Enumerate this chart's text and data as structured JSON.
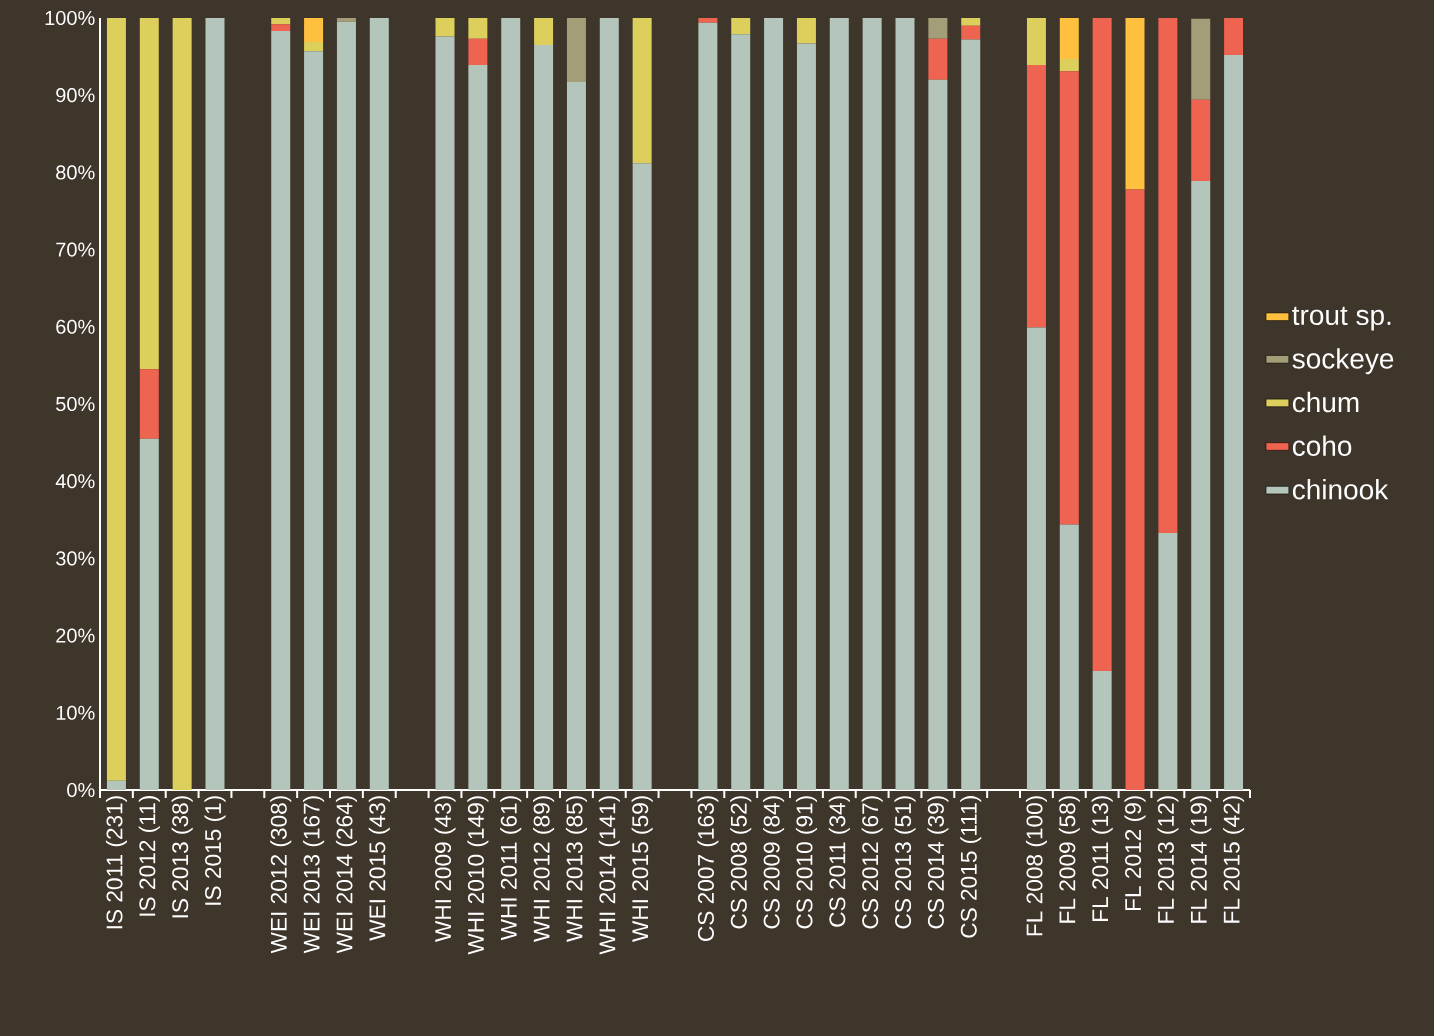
{
  "chart_data": {
    "type": "bar",
    "stacked": true,
    "legend": "right",
    "ylim": [
      0,
      100
    ],
    "yticks": [
      {
        "value": 0,
        "label": "0%"
      },
      {
        "value": 10,
        "label": "10%"
      },
      {
        "value": 20,
        "label": "20%"
      },
      {
        "value": 30,
        "label": "30%"
      },
      {
        "value": 40,
        "label": "40%"
      },
      {
        "value": 50,
        "label": "50%"
      },
      {
        "value": 60,
        "label": "60%"
      },
      {
        "value": 70,
        "label": "70%"
      },
      {
        "value": 80,
        "label": "80%"
      },
      {
        "value": 90,
        "label": "90%"
      },
      {
        "value": 100,
        "label": "100%"
      }
    ],
    "categories": [
      "IS 2011  (231)",
      "IS 2012 (11)",
      "IS 2013 (38)",
      "IS 2015 (1)",
      null,
      "WEI 2012 (308)",
      "WEI 2013 (167)",
      "WEI 2014 (264)",
      "WEI 2015 (43)",
      null,
      "WHI 2009 (43)",
      "WHI 2010 (149)",
      "WHI 2011 (61)",
      "WHI 2012 (89)",
      "WHI 2013 (85)",
      "WHI 2014 (141)",
      "WHI 2015 (59)",
      null,
      "CS 2007 (163)",
      "CS 2008 (52)",
      "CS 2009 (84)",
      "CS 2010 (91)",
      "CS 2011 (34)",
      "CS 2012 (67)",
      "CS 2013 (51)",
      "CS 2014 (39)",
      "CS 2015 (111)",
      null,
      "FL 2008 (100)",
      "FL 2009 (58)",
      "FL 2011 (13)",
      "FL 2012 (9)",
      "FL 2013 (12)",
      "FL 2014 (19)",
      "FL 2015 (42)"
    ],
    "series": [
      {
        "name": "chinook",
        "color": "#b4c6bc",
        "values": [
          1.2,
          45.5,
          0,
          100,
          null,
          98.3,
          95.7,
          99.5,
          100,
          null,
          97.6,
          93.9,
          100,
          96.5,
          91.7,
          100,
          81.2,
          null,
          99.4,
          97.9,
          100,
          96.7,
          100,
          100,
          100,
          92.0,
          97.2,
          null,
          59.9,
          34.4,
          15.4,
          0,
          33.3,
          78.9,
          95.2
        ]
      },
      {
        "name": "coho",
        "color": "#ee6450",
        "values": [
          0,
          9.0,
          0,
          0,
          null,
          0.9,
          0,
          0,
          0,
          null,
          0,
          3.4,
          0,
          0,
          0,
          0,
          0,
          null,
          0.6,
          0,
          0,
          0,
          0,
          0,
          0,
          5.3,
          1.8,
          null,
          34.0,
          58.7,
          84.6,
          77.8,
          66.7,
          10.5,
          4.8
        ]
      },
      {
        "name": "chum",
        "color": "#dccf5c",
        "values": [
          98.8,
          45.5,
          100,
          0,
          null,
          0.8,
          1.2,
          0,
          0,
          null,
          2.4,
          2.7,
          0,
          3.5,
          0,
          0,
          18.8,
          null,
          0,
          2.1,
          0,
          3.3,
          0,
          0,
          0,
          0,
          1.0,
          null,
          6.1,
          1.6,
          0,
          0,
          0,
          0,
          0
        ]
      },
      {
        "name": "sockeye",
        "color": "#a49e78",
        "values": [
          0,
          0,
          0,
          0,
          null,
          0,
          0,
          0.5,
          0,
          null,
          0,
          0,
          0,
          0,
          8.3,
          0,
          0,
          null,
          0,
          0,
          0,
          0,
          0,
          0,
          0,
          2.7,
          0,
          null,
          0,
          0,
          0,
          0,
          0,
          10.5,
          0
        ]
      },
      {
        "name": "trout sp.",
        "color": "#ffc040",
        "values": [
          0,
          0,
          0,
          0,
          null,
          0,
          3.1,
          0,
          0,
          null,
          0,
          0,
          0,
          0,
          0,
          0,
          0,
          null,
          0,
          0,
          0,
          0,
          0,
          0,
          0,
          0,
          0,
          null,
          0,
          5.3,
          0,
          22.2,
          0,
          0,
          0
        ]
      }
    ]
  }
}
